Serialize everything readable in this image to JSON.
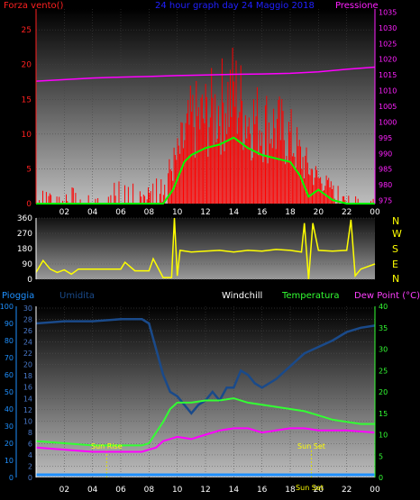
{
  "header": {
    "left_label": "Forza vento()",
    "center_label": "24 hour graph day  24 Maggio 2018",
    "right_label": "Pressione"
  },
  "wind_dir_letters": [
    "N",
    "W",
    "S",
    "E",
    "N"
  ],
  "bottom_header": {
    "pioggia": "Pioggia",
    "umidita": "Umidita",
    "windchill": "Windchill",
    "temperatura": "Temperatura",
    "dewpoint": "Dew Point (°C)"
  },
  "colors": {
    "wind": "#ff0000",
    "gust_line": "#00ff00",
    "pressure": "#ff00ff",
    "wind_dir": "#ffff00",
    "humidity": "#1a4a8a",
    "temperature": "#33ff33",
    "dewpoint": "#ff00ff",
    "rain": "#1e90ff",
    "title": "#2020ff"
  },
  "chart_data": [
    {
      "type": "line",
      "panel": "wind-pressure",
      "x_ticks": [
        "02",
        "04",
        "06",
        "08",
        "10",
        "12",
        "14",
        "16",
        "18",
        "20",
        "22",
        "00"
      ],
      "y_left_ticks": [
        "0",
        "5",
        "10",
        "15",
        "20",
        "25"
      ],
      "y_left_range": [
        0,
        28
      ],
      "y_right_ticks": [
        "975",
        "980",
        "985",
        "990",
        "995",
        "1000",
        "1005",
        "1010",
        "1015",
        "1020",
        "1025",
        "1030",
        "1035"
      ],
      "y_right_range": [
        974,
        1036
      ],
      "x_range": [
        0,
        24
      ],
      "series": [
        {
          "name": "Pressione",
          "x": [
            0,
            2,
            4,
            6,
            8,
            10,
            12,
            14,
            16,
            18,
            20,
            22,
            24
          ],
          "y": [
            1013,
            1013.5,
            1014,
            1014.3,
            1014.5,
            1014.8,
            1015,
            1015.2,
            1015.3,
            1015.5,
            1016,
            1016.8,
            1017.5
          ]
        },
        {
          "name": "wind_mean",
          "x": [
            0,
            9,
            9.7,
            10.5,
            11,
            12,
            13,
            14,
            15,
            16,
            17,
            18,
            18.7,
            19.3,
            20,
            21,
            22,
            24
          ],
          "y": [
            0,
            0,
            2,
            6,
            7,
            8,
            8.5,
            9.5,
            8,
            7,
            6.5,
            6,
            4,
            1,
            2,
            0.5,
            0,
            0
          ]
        },
        {
          "name": "wind_gust",
          "x": [
            0,
            5,
            9,
            10,
            11,
            12,
            13,
            14,
            15,
            16,
            17,
            18,
            19,
            20,
            21,
            22,
            24
          ],
          "y": [
            2,
            3,
            4,
            9,
            16,
            17,
            19,
            22,
            17,
            16,
            15,
            13,
            8,
            5,
            3,
            2,
            1
          ]
        }
      ]
    },
    {
      "type": "line",
      "panel": "wind-direction",
      "y_ticks": [
        "0",
        "90",
        "180",
        "270",
        "360"
      ],
      "y_range": [
        0,
        360
      ],
      "series": [
        {
          "name": "direction",
          "x": [
            0,
            0.5,
            1,
            1.5,
            2,
            2.5,
            3,
            4,
            5,
            6,
            6.3,
            7,
            8,
            8.3,
            9,
            9.6,
            9.8,
            10,
            10.2,
            11,
            12,
            13,
            14,
            15,
            16,
            17,
            18,
            18.8,
            19,
            19.3,
            19.6,
            20,
            21,
            22,
            22.3,
            22.6,
            23,
            24
          ],
          "y": [
            40,
            110,
            60,
            40,
            55,
            30,
            60,
            60,
            60,
            60,
            100,
            50,
            50,
            120,
            10,
            10,
            360,
            20,
            170,
            160,
            165,
            170,
            160,
            170,
            165,
            175,
            170,
            160,
            330,
            0,
            330,
            170,
            165,
            170,
            350,
            20,
            60,
            90
          ]
        }
      ]
    },
    {
      "type": "line",
      "panel": "temperature-humidity",
      "y_outer_ticks": [
        "0",
        "10",
        "20",
        "30",
        "40",
        "50",
        "60",
        "70",
        "80",
        "90",
        "100"
      ],
      "y_inner_ticks": [
        "0",
        "2",
        "4",
        "6",
        "8",
        "10",
        "12",
        "14",
        "16",
        "18",
        "20",
        "22",
        "24",
        "26",
        "28",
        "30"
      ],
      "y_right_ticks": [
        "0",
        "5",
        "10",
        "15",
        "20",
        "25",
        "30",
        "35",
        "40"
      ],
      "y_range": [
        0,
        40
      ],
      "annotations": [
        "Sun Rise",
        "Sun Set",
        "Sun Set"
      ],
      "series": [
        {
          "name": "Umidita",
          "x": [
            0,
            2,
            4,
            6,
            7.5,
            8,
            8.5,
            9,
            9.5,
            10,
            10.5,
            11,
            11.5,
            12,
            12.5,
            13,
            13.5,
            14,
            14.5,
            15,
            15.5,
            16,
            17,
            18,
            19,
            20,
            21,
            22,
            23,
            24
          ],
          "y": [
            36,
            36.5,
            36.5,
            37,
            37,
            36,
            30,
            24,
            20,
            19,
            17,
            15,
            17,
            18,
            20,
            18,
            21,
            21,
            25,
            24,
            22,
            21,
            23,
            26,
            29,
            30.5,
            32,
            34,
            35,
            35.5
          ]
        },
        {
          "name": "Temperatura",
          "x": [
            0,
            2,
            4,
            6,
            7.5,
            8,
            8.5,
            9,
            9.5,
            10,
            11,
            12,
            13,
            14,
            15,
            16,
            17,
            18,
            19,
            20,
            21,
            22,
            23,
            24
          ],
          "y": [
            8.5,
            8,
            7.5,
            7.5,
            7.5,
            8,
            10.5,
            13,
            16,
            17.5,
            17.5,
            18,
            18,
            18.5,
            17.5,
            17,
            16.5,
            16,
            15.5,
            14.5,
            13.5,
            13,
            12.5,
            12.5
          ]
        },
        {
          "name": "Dew Point",
          "x": [
            0,
            2,
            4,
            5,
            6,
            7.5,
            8,
            8.5,
            9,
            9.5,
            10,
            11,
            12,
            13,
            14,
            15,
            16,
            17,
            18,
            19,
            20,
            21,
            22,
            24
          ],
          "y": [
            7,
            6.5,
            6,
            6,
            6,
            6,
            6.5,
            7,
            8.5,
            9,
            9.5,
            9,
            10,
            11,
            11.5,
            11.5,
            10.5,
            11,
            11.5,
            11.5,
            11,
            11,
            11,
            10.5
          ]
        },
        {
          "name": "Pioggia",
          "x": [
            0,
            24
          ],
          "y": [
            0,
            0
          ]
        }
      ]
    }
  ]
}
